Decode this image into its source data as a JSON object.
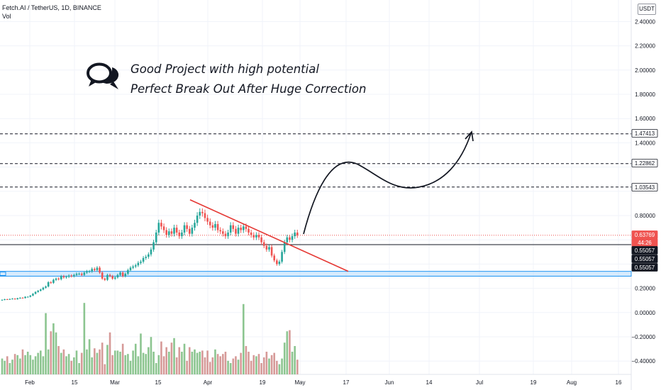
{
  "header": {
    "symbol_line": "Fetch.AI / TetherUS, 1D, BINANCE",
    "indicator": "Vol",
    "currency": "USDT"
  },
  "annotation": {
    "line1": "Good Project with high potential",
    "line2": "Perfect Break Out After Huge Correction",
    "icon": "speech-bubbles-icon"
  },
  "colors": {
    "up": "#26a69a",
    "down": "#ef5350",
    "vol_up": "#8cc590",
    "vol_down": "#d69a98",
    "trendline": "#e53935",
    "support_zone": "#bbdefb",
    "support_border": "#2196f3",
    "price_label": "#ef5350"
  },
  "chart_data": {
    "type": "candlestick",
    "symbol": "Fetch.AI / TetherUS",
    "interval": "1D",
    "exchange": "BINANCE",
    "x_ticks": [
      "Feb",
      "15",
      "Mar",
      "15",
      "Apr",
      "19",
      "May",
      "17",
      "Jun",
      "14",
      "Jul",
      "19",
      "Aug",
      "16"
    ],
    "y_ticks": [
      "2.40000",
      "2.20000",
      "2.00000",
      "1.80000",
      "1.60000",
      "1.40000",
      "0.80000",
      "0.20000",
      "0.00000",
      "−0.20000",
      "−0.40000"
    ],
    "ylim": [
      -0.48,
      2.5
    ],
    "close_series": [
      0.105,
      0.11,
      0.108,
      0.112,
      0.115,
      0.11,
      0.118,
      0.122,
      0.12,
      0.13,
      0.13,
      0.14,
      0.155,
      0.17,
      0.18,
      0.19,
      0.205,
      0.215,
      0.25,
      0.245,
      0.27,
      0.28,
      0.275,
      0.3,
      0.29,
      0.295,
      0.305,
      0.3,
      0.31,
      0.32,
      0.32,
      0.31,
      0.33,
      0.34,
      0.34,
      0.36,
      0.35,
      0.37,
      0.33,
      0.28,
      0.27,
      0.31,
      0.3,
      0.28,
      0.29,
      0.31,
      0.33,
      0.3,
      0.32,
      0.35,
      0.37,
      0.38,
      0.39,
      0.41,
      0.42,
      0.45,
      0.46,
      0.48,
      0.52,
      0.58,
      0.66,
      0.74,
      0.71,
      0.68,
      0.64,
      0.67,
      0.65,
      0.7,
      0.66,
      0.63,
      0.66,
      0.72,
      0.69,
      0.65,
      0.7,
      0.74,
      0.8,
      0.83,
      0.82,
      0.78,
      0.75,
      0.72,
      0.7,
      0.73,
      0.68,
      0.67,
      0.65,
      0.63,
      0.66,
      0.72,
      0.69,
      0.65,
      0.7,
      0.68,
      0.71,
      0.69,
      0.66,
      0.64,
      0.62,
      0.64,
      0.62,
      0.58,
      0.55,
      0.52,
      0.54,
      0.47,
      0.43,
      0.4,
      0.42,
      0.5,
      0.58,
      0.62,
      0.6,
      0.63,
      0.66,
      0.6377
    ],
    "volume_series": [
      14,
      12,
      16,
      10,
      13,
      18,
      17,
      14,
      22,
      17,
      20,
      17,
      13,
      16,
      19,
      21,
      16,
      54,
      22,
      38,
      45,
      37,
      25,
      19,
      22,
      16,
      18,
      12,
      15,
      21,
      10,
      19,
      63,
      22,
      31,
      15,
      23,
      19,
      22,
      28,
      9,
      26,
      37,
      17,
      21,
      21,
      20,
      27,
      17,
      18,
      12,
      21,
      27,
      16,
      36,
      19,
      18,
      24,
      33,
      20,
      10,
      17,
      29,
      16,
      24,
      20,
      28,
      32,
      15,
      24,
      20,
      27,
      12,
      24,
      20,
      22,
      19,
      20,
      21,
      15,
      21,
      11,
      15,
      22,
      18,
      16,
      18,
      20,
      12,
      10,
      14,
      16,
      13,
      19,
      62,
      25,
      20,
      12,
      17,
      16,
      18,
      10,
      15,
      20,
      14,
      17,
      19,
      12,
      9,
      14,
      28,
      38,
      39,
      20,
      25,
      13
    ],
    "support_level": 0.32,
    "support_zone": [
      0.3,
      0.34
    ],
    "trendline_start": {
      "x": "Mar 28",
      "y": 0.93
    },
    "trendline_end": {
      "x": "May 14",
      "y": 0.34
    },
    "projection_targets": [
      1.03543,
      1.22862,
      1.47413
    ],
    "price_labels": [
      {
        "value": "1.47413",
        "style": "level"
      },
      {
        "value": "1.22862",
        "style": "level"
      },
      {
        "value": "1.03543",
        "style": "level"
      },
      {
        "value": "0.63769",
        "style": "last"
      },
      {
        "value": "44:26",
        "style": "countdown"
      },
      {
        "value": "0.55057",
        "style": "dark"
      },
      {
        "value": "0.55057",
        "style": "dark"
      },
      {
        "value": "0.55057",
        "style": "dark"
      }
    ]
  }
}
